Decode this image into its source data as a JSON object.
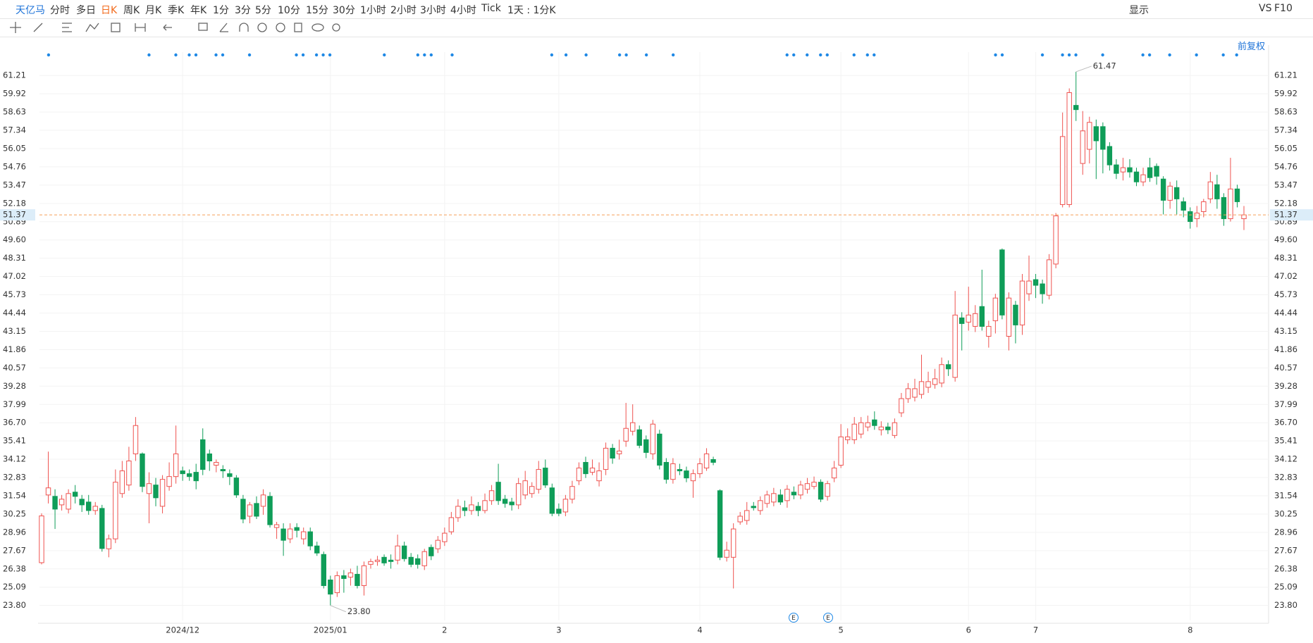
{
  "toolbar": {
    "stock": "天亿马",
    "periods": [
      "分时",
      "多日",
      "日K",
      "周K",
      "月K",
      "季K",
      "年K",
      "1分",
      "3分",
      "5分",
      "10分",
      "15分",
      "30分",
      "1小时",
      "2小时",
      "3小时",
      "4小时",
      "Tick",
      "1天 : 1分K"
    ],
    "right": [
      "显示",
      "VS",
      "F10"
    ],
    "adjust": "前复权"
  },
  "chart_data": {
    "type": "candlestick",
    "categories": [
      null,
      null,
      null,
      null,
      null,
      null,
      null,
      null,
      null,
      null,
      null,
      null,
      null,
      null,
      null,
      null,
      null,
      null,
      null,
      null,
      null,
      "2024/12",
      null,
      null,
      null,
      null,
      null,
      null,
      null,
      null,
      null,
      null,
      null,
      null,
      null,
      null,
      null,
      null,
      null,
      null,
      null,
      null,
      null,
      "2025/01",
      null,
      null,
      null,
      null,
      null,
      null,
      null,
      null,
      null,
      null,
      null,
      null,
      null,
      null,
      null,
      null,
      "2",
      null,
      null,
      null,
      null,
      null,
      null,
      null,
      null,
      null,
      null,
      null,
      null,
      null,
      null,
      null,
      null,
      "3",
      null,
      null,
      null,
      null,
      null,
      null,
      null,
      null,
      null,
      null,
      null,
      null,
      null,
      null,
      null,
      null,
      null,
      null,
      null,
      null,
      "4",
      null,
      null,
      null,
      null,
      null,
      null,
      null,
      null,
      null,
      null,
      null,
      null,
      null,
      null,
      null,
      null,
      null,
      null,
      null,
      null,
      "5",
      null,
      null,
      null,
      null,
      null,
      null,
      null,
      null,
      null,
      null,
      null,
      null,
      null,
      null,
      null,
      null,
      null,
      null,
      "6",
      null,
      null,
      null,
      null,
      null,
      null,
      null,
      null,
      null,
      "7",
      null,
      null,
      null,
      null,
      null,
      null,
      null,
      null,
      null,
      null,
      null,
      null,
      null,
      null,
      null,
      null,
      null,
      null,
      null,
      null,
      null,
      null,
      "8",
      null,
      null,
      null,
      null,
      null,
      null,
      null,
      null
    ],
    "open": [
      26.82,
      31.6,
      31.5,
      30.9,
      30.6,
      31.8,
      31.3,
      31.1,
      30.5,
      30.65,
      27.8,
      28.5,
      31.7,
      32.3,
      34.5,
      34.5,
      31.7,
      32.3,
      30.8,
      32.2,
      32.9,
      33.3,
      33.1,
      33.2,
      35.5,
      34.5,
      33.7,
      33.4,
      33.1,
      32.8,
      31.3,
      30.1,
      31.0,
      30.8,
      31.5,
      29.3,
      29.2,
      28.5,
      29.3,
      28.5,
      29.0,
      28.0,
      27.4,
      25.6,
      24.7,
      25.9,
      25.8,
      26.0,
      25.2,
      26.7,
      26.9,
      27.2,
      27.0,
      27.0,
      28.0,
      27.2,
      27.1,
      26.6,
      27.9,
      27.8,
      28.3,
      29.0,
      30.0,
      30.7,
      30.5,
      30.8,
      30.5,
      31.2,
      32.5,
      31.3,
      31.1,
      30.9,
      31.6,
      31.7,
      32.0,
      33.5,
      32.1,
      30.6,
      30.4,
      31.3,
      32.6,
      33.9,
      33.2,
      32.6,
      33.4,
      34.9,
      34.5,
      35.4,
      36.1,
      36.2,
      35.5,
      34.5,
      35.9,
      33.9,
      32.7,
      33.4,
      33.3,
      32.6,
      33.1,
      33.5,
      34.1,
      31.9,
      27.2,
      27.2,
      29.7,
      29.8,
      30.8,
      30.5,
      31.0,
      31.1,
      31.6,
      31.2,
      31.8,
      31.6,
      32.0,
      32.2,
      32.5,
      31.5,
      32.8,
      33.7,
      35.5,
      35.5,
      35.9,
      36.4,
      36.9,
      36.2,
      36.4,
      35.8,
      37.4,
      38.4,
      38.5,
      38.7,
      39.2,
      39.4,
      39.5,
      40.8,
      39.9,
      44.1,
      43.8,
      43.5,
      44.9,
      42.8,
      43.9,
      48.9,
      42.8,
      45.0,
      43.6,
      45.8,
      46.8,
      46.5,
      45.7,
      47.9,
      52.1,
      52.1,
      59.1,
      55.0,
      56.0,
      57.6,
      57.6,
      56.2,
      54.9,
      54.4,
      54.7,
      54.4,
      53.7,
      54.7,
      54.8,
      53.9,
      52.4,
      53.3,
      52.3,
      51.6,
      51.1,
      51.6,
      52.5,
      53.5,
      52.6,
      51.1,
      53.2,
      51.1
    ],
    "high": [
      30.3,
      34.66,
      32.0,
      31.6,
      32.0,
      32.3,
      31.6,
      31.6,
      31.1,
      30.9,
      28.8,
      33.4,
      34.0,
      35.0,
      37.1,
      34.6,
      33.2,
      32.8,
      33.0,
      33.9,
      36.5,
      33.6,
      33.4,
      33.8,
      36.3,
      34.8,
      34.1,
      33.7,
      33.4,
      33.0,
      31.6,
      31.1,
      31.5,
      32.0,
      31.8,
      29.7,
      29.6,
      29.6,
      29.6,
      29.3,
      29.3,
      28.3,
      27.6,
      25.9,
      26.2,
      26.3,
      26.4,
      26.6,
      26.9,
      27.1,
      27.3,
      27.4,
      27.4,
      28.8,
      28.3,
      27.5,
      27.4,
      27.8,
      28.1,
      28.7,
      29.3,
      30.4,
      31.3,
      31.2,
      31.5,
      31.1,
      31.7,
      32.3,
      33.8,
      31.6,
      31.4,
      32.8,
      33.3,
      32.5,
      34.0,
      34.1,
      32.4,
      31.0,
      31.6,
      32.6,
      33.9,
      34.3,
      34.1,
      33.9,
      35.3,
      35.2,
      35.5,
      38.1,
      38.0,
      36.5,
      35.8,
      36.9,
      36.2,
      34.2,
      34.2,
      33.8,
      33.6,
      33.4,
      34.2,
      34.9,
      34.3,
      32.0,
      28.3,
      29.6,
      30.4,
      31.1,
      31.1,
      31.5,
      31.9,
      32.1,
      32.0,
      32.3,
      32.2,
      32.6,
      32.8,
      32.9,
      32.7,
      32.6,
      34.0,
      36.6,
      36.3,
      37.1,
      37.1,
      37.2,
      37.5,
      36.8,
      36.7,
      37.0,
      38.8,
      39.5,
      39.8,
      41.5,
      40.3,
      40.5,
      41.3,
      41.1,
      46.0,
      44.5,
      46.3,
      45.0,
      47.5,
      43.9,
      45.8,
      49.0,
      45.9,
      45.3,
      47.2,
      48.5,
      47.2,
      46.8,
      48.6,
      51.5,
      58.6,
      60.3,
      61.47,
      58.7,
      58.3,
      58.1,
      57.9,
      56.5,
      55.3,
      55.4,
      55.3,
      54.7,
      54.7,
      55.4,
      55.0,
      54.1,
      53.7,
      53.8,
      52.6,
      51.9,
      52.0,
      52.5,
      54.4,
      54.2,
      52.9,
      55.4,
      53.5,
      52.0
    ],
    "low": [
      26.7,
      31.0,
      29.2,
      30.5,
      30.3,
      31.0,
      30.4,
      30.2,
      30.2,
      27.6,
      27.2,
      28.2,
      31.4,
      31.9,
      34.0,
      31.8,
      29.6,
      30.8,
      30.3,
      31.9,
      32.4,
      32.6,
      32.6,
      32.0,
      33.0,
      33.3,
      33.2,
      32.8,
      32.3,
      31.4,
      29.6,
      29.6,
      29.9,
      30.2,
      29.3,
      28.5,
      27.3,
      28.2,
      28.6,
      28.1,
      27.7,
      27.3,
      25.0,
      23.8,
      24.4,
      24.7,
      25.2,
      25.0,
      24.5,
      26.4,
      26.6,
      26.6,
      26.4,
      26.7,
      26.9,
      26.5,
      26.4,
      26.3,
      27.0,
      27.5,
      28.0,
      28.8,
      29.7,
      30.1,
      30.2,
      30.1,
      30.3,
      30.9,
      30.9,
      30.7,
      30.5,
      30.6,
      31.3,
      31.4,
      31.7,
      32.1,
      30.1,
      30.1,
      30.1,
      31.0,
      32.3,
      32.8,
      33.0,
      32.2,
      33.0,
      33.8,
      34.1,
      35.0,
      35.8,
      34.9,
      34.2,
      34.1,
      33.4,
      32.4,
      32.4,
      33.0,
      32.5,
      31.4,
      32.8,
      33.3,
      33.7,
      27.0,
      26.9,
      25.0,
      29.5,
      29.5,
      30.5,
      30.2,
      30.7,
      30.8,
      30.9,
      30.7,
      31.3,
      31.3,
      31.7,
      32.0,
      31.1,
      31.2,
      32.5,
      33.5,
      35.2,
      35.2,
      35.6,
      36.1,
      36.2,
      35.8,
      35.9,
      35.6,
      37.1,
      38.1,
      38.2,
      38.4,
      38.8,
      39.1,
      39.2,
      40.0,
      39.6,
      41.8,
      43.2,
      43.1,
      43.2,
      42.0,
      43.0,
      44.0,
      41.8,
      42.3,
      42.9,
      45.3,
      45.5,
      45.1,
      45.4,
      47.6,
      51.9,
      51.9,
      58.0,
      54.2,
      55.0,
      53.9,
      54.3,
      54.5,
      53.9,
      53.8,
      54.0,
      53.4,
      53.4,
      53.7,
      53.5,
      51.4,
      51.8,
      51.4,
      51.2,
      50.4,
      50.5,
      51.2,
      52.2,
      51.8,
      50.6,
      50.9,
      51.9,
      50.3
    ],
    "close": [
      30.12,
      32.1,
      30.6,
      31.3,
      31.7,
      31.5,
      30.9,
      30.5,
      30.8,
      27.82,
      28.5,
      32.5,
      33.3,
      34.0,
      36.5,
      32.2,
      32.4,
      31.4,
      32.7,
      32.9,
      34.5,
      33.1,
      32.9,
      32.6,
      33.4,
      34.0,
      33.9,
      33.3,
      32.9,
      31.6,
      29.9,
      30.9,
      30.1,
      31.6,
      29.5,
      29.5,
      28.4,
      29.2,
      29.1,
      29.0,
      28.0,
      27.5,
      25.2,
      24.6,
      25.9,
      25.7,
      26.1,
      25.2,
      26.6,
      26.9,
      27.0,
      26.8,
      26.9,
      28.0,
      27.1,
      26.7,
      26.7,
      27.6,
      27.3,
      28.4,
      28.9,
      30.0,
      30.8,
      30.5,
      30.9,
      30.5,
      31.2,
      31.9,
      31.2,
      31.0,
      30.9,
      32.4,
      32.6,
      32.2,
      33.4,
      32.3,
      30.3,
      30.3,
      31.3,
      32.2,
      33.5,
      33.1,
      33.5,
      33.3,
      34.9,
      34.2,
      34.7,
      36.3,
      36.7,
      35.1,
      34.6,
      36.6,
      33.7,
      32.7,
      33.8,
      33.3,
      32.8,
      33.1,
      33.8,
      34.5,
      33.9,
      27.2,
      27.7,
      29.2,
      30.1,
      30.5,
      30.7,
      31.2,
      31.6,
      31.7,
      31.1,
      32.0,
      31.6,
      32.3,
      32.4,
      32.5,
      31.3,
      32.4,
      33.5,
      35.7,
      35.7,
      36.6,
      36.7,
      36.7,
      36.5,
      36.4,
      36.2,
      36.7,
      38.4,
      39.1,
      39.1,
      39.6,
      39.6,
      39.8,
      40.8,
      40.5,
      44.3,
      43.7,
      44.3,
      44.4,
      43.5,
      43.5,
      45.5,
      44.3,
      45.5,
      43.6,
      46.7,
      46.7,
      46.4,
      45.8,
      48.2,
      51.3,
      56.9,
      60.0,
      58.8,
      57.3,
      57.9,
      56.6,
      56.0,
      54.9,
      54.3,
      54.7,
      54.4,
      53.7,
      54.2,
      54.0,
      54.1,
      52.4,
      53.4,
      52.5,
      51.7,
      50.9,
      51.5,
      52.3,
      53.7,
      52.5,
      51.1,
      53.2,
      52.3,
      51.37
    ],
    "up_color": "#ef5350",
    "down_color": "#0f9d58",
    "ylim": [
      22.74,
      62.86
    ],
    "yticks": [
      61.21,
      59.92,
      58.63,
      57.34,
      56.05,
      54.76,
      53.47,
      52.18,
      50.89,
      {
        "value": 49.6,
        "label": "49.60"
      },
      48.31,
      47.02,
      45.73,
      44.44,
      43.15,
      41.86,
      {
        "value": 40.57,
        "label": "40.57"
      },
      39.28,
      37.99,
      {
        "value": 36.7,
        "label": "36.70"
      },
      35.41,
      34.12,
      32.83,
      31.54,
      30.25,
      28.96,
      27.67,
      26.38,
      25.09,
      {
        "value": 23.8,
        "label": "23.80"
      }
    ],
    "grid": true,
    "last_price": {
      "value": 51.37,
      "label": "51.37"
    },
    "annotations": [
      {
        "value": 61.47,
        "label": "61.47"
      },
      {
        "value": 23.8,
        "label": "23.80"
      }
    ],
    "events": [
      "E",
      "E"
    ]
  }
}
